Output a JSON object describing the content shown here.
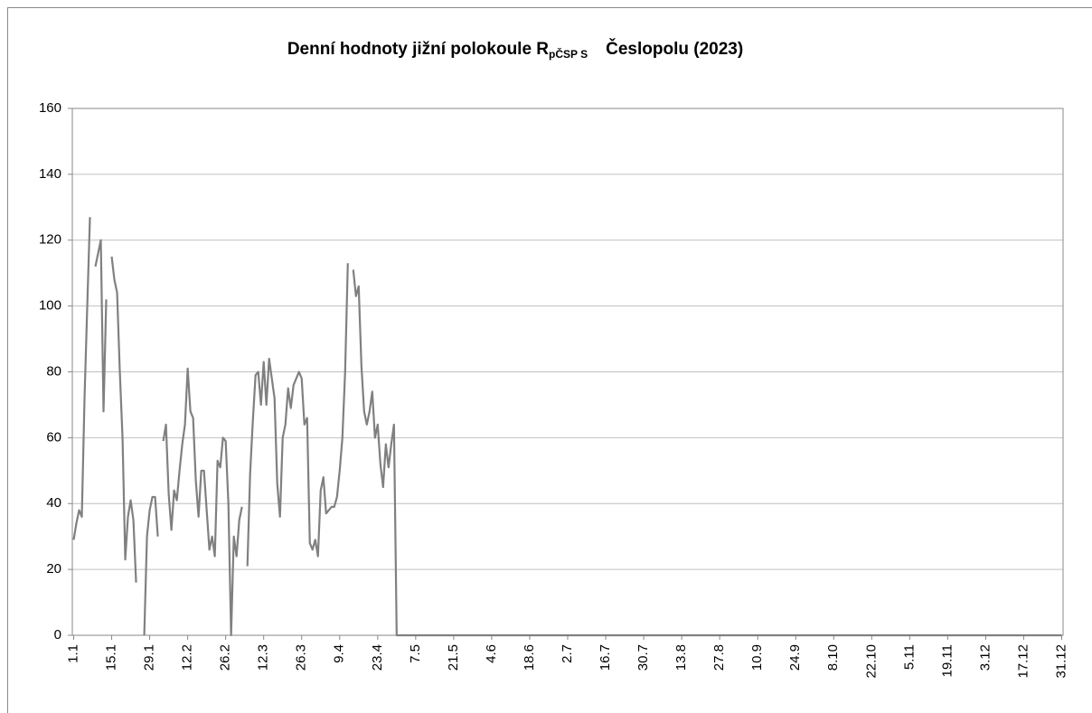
{
  "chart_data": {
    "type": "line",
    "title": "Denní hodnoty jižní polokoule R",
    "title_subscript": "pČSP S",
    "title_end": "Česlopolu (2023)",
    "color": "#808080",
    "ylim": [
      0,
      160
    ],
    "yticks": [
      0,
      20,
      40,
      60,
      80,
      100,
      120,
      140,
      160
    ],
    "grid": true,
    "categories": [
      "1.1",
      null,
      null,
      null,
      null,
      null,
      null,
      null,
      null,
      null,
      null,
      null,
      null,
      null,
      "15.1",
      null,
      null,
      null,
      null,
      null,
      null,
      null,
      null,
      null,
      null,
      null,
      null,
      null,
      "29.1",
      null,
      null,
      null,
      null,
      null,
      null,
      null,
      null,
      null,
      null,
      null,
      null,
      null,
      "12.2",
      null,
      null,
      null,
      null,
      null,
      null,
      null,
      null,
      null,
      null,
      null,
      null,
      null,
      "26.2",
      null,
      null,
      null,
      null,
      null,
      null,
      null,
      null,
      null,
      null,
      null,
      null,
      null,
      "12.3",
      null,
      null,
      null,
      null,
      null,
      null,
      null,
      null,
      null,
      null,
      null,
      null,
      null,
      "26.3",
      null,
      null,
      null,
      null,
      null,
      null,
      null,
      null,
      null,
      null,
      null,
      null,
      null,
      "9.4",
      null,
      null,
      null,
      null,
      null,
      null,
      null,
      null,
      null,
      null,
      null,
      null,
      null,
      "23.4",
      null,
      null,
      null,
      null,
      null,
      null,
      null,
      null,
      null,
      null,
      null,
      null,
      null,
      "7.5",
      null,
      null,
      null,
      null,
      null,
      null,
      null,
      null,
      null,
      null,
      null,
      null,
      null,
      "21.5",
      null,
      null,
      null,
      null,
      null,
      null,
      null,
      null,
      null,
      null,
      null,
      null,
      null,
      "4.6",
      null,
      null,
      null,
      null,
      null,
      null,
      null,
      null,
      null,
      null,
      null,
      null,
      null,
      "18.6",
      null,
      null,
      null,
      null,
      null,
      null,
      null,
      null,
      null,
      null,
      null,
      null,
      null,
      "2.7",
      null,
      null,
      null,
      null,
      null,
      null,
      null,
      null,
      null,
      null,
      null,
      null,
      null,
      "16.7",
      null,
      null,
      null,
      null,
      null,
      null,
      null,
      null,
      null,
      null,
      null,
      null,
      null,
      "30.7",
      null,
      null,
      null,
      null,
      null,
      null,
      null,
      null,
      null,
      null,
      null,
      null,
      null,
      "13.8",
      null,
      null,
      null,
      null,
      null,
      null,
      null,
      null,
      null,
      null,
      null,
      null,
      null,
      "27.8",
      null,
      null,
      null,
      null,
      null,
      null,
      null,
      null,
      null,
      null,
      null,
      null,
      null,
      "10.9",
      null,
      null,
      null,
      null,
      null,
      null,
      null,
      null,
      null,
      null,
      null,
      null,
      null,
      "24.9",
      null,
      null,
      null,
      null,
      null,
      null,
      null,
      null,
      null,
      null,
      null,
      null,
      null,
      "8.10",
      null,
      null,
      null,
      null,
      null,
      null,
      null,
      null,
      null,
      null,
      null,
      null,
      null,
      "22.10",
      null,
      null,
      null,
      null,
      null,
      null,
      null,
      null,
      null,
      null,
      null,
      null,
      null,
      "5.11",
      null,
      null,
      null,
      null,
      null,
      null,
      null,
      null,
      null,
      null,
      null,
      null,
      null,
      "19.11",
      null,
      null,
      null,
      null,
      null,
      null,
      null,
      null,
      null,
      null,
      null,
      null,
      null,
      "3.12",
      null,
      null,
      null,
      null,
      null,
      null,
      null,
      null,
      null,
      null,
      null,
      null,
      null,
      "17.12",
      null,
      null,
      null,
      null,
      null,
      null,
      null,
      null,
      null,
      null,
      null,
      null,
      null,
      "31.12"
    ],
    "values": [
      29,
      34,
      38,
      36,
      72,
      100,
      127,
      null,
      112,
      116,
      120,
      68,
      102,
      null,
      115,
      108,
      104,
      80,
      60,
      23,
      36,
      41,
      35,
      16,
      null,
      null,
      0,
      30,
      38,
      42,
      42,
      30,
      null,
      59,
      64,
      43,
      32,
      44,
      41,
      50,
      58,
      64,
      81,
      68,
      66,
      47,
      36,
      50,
      50,
      38,
      26,
      30,
      24,
      53,
      51,
      60,
      59,
      40,
      0,
      30,
      24,
      35,
      39,
      null,
      21,
      49,
      65,
      79,
      80,
      70,
      83,
      70,
      84,
      78,
      72,
      46,
      36,
      60,
      64,
      75,
      69,
      76,
      78,
      80,
      78,
      64,
      66,
      28,
      26,
      29,
      24,
      44,
      48,
      37,
      38,
      39,
      39,
      42,
      50,
      60,
      80,
      113,
      null,
      111,
      103,
      106,
      82,
      68,
      64,
      68,
      74,
      60,
      64,
      52,
      45,
      58,
      51,
      58,
      64,
      0,
      0,
      0,
      0,
      0,
      0,
      0,
      0,
      0,
      0,
      0,
      0,
      0,
      0,
      0,
      0,
      0,
      0,
      0,
      0,
      0,
      0,
      0,
      0,
      0,
      0,
      0,
      0,
      0,
      0,
      0,
      0,
      0,
      0,
      0,
      0,
      0,
      0,
      0,
      0,
      0,
      0,
      0,
      0,
      0,
      0,
      0,
      0,
      0,
      0,
      0,
      0,
      0,
      0,
      0,
      0,
      0,
      0,
      0,
      0,
      0,
      0,
      0,
      0,
      0,
      0,
      0,
      0,
      0,
      0,
      0,
      0,
      0,
      0,
      0,
      0,
      0,
      0,
      0,
      0,
      0,
      0,
      0,
      0,
      0,
      0,
      0,
      0,
      0,
      0,
      0,
      0,
      0,
      0,
      0,
      0,
      0,
      0,
      0,
      0,
      0,
      0,
      0,
      0,
      0,
      0,
      0,
      0,
      0,
      0,
      0,
      0,
      0,
      0,
      0,
      0,
      0,
      0,
      0,
      0,
      0,
      0,
      0,
      0,
      0,
      0,
      0,
      0,
      0,
      0,
      0,
      0,
      0,
      0,
      0,
      0,
      0,
      0,
      0,
      0,
      0,
      0,
      0,
      0,
      0,
      0,
      0,
      0,
      0,
      0,
      0,
      0,
      0,
      0,
      0,
      0,
      0,
      0,
      0,
      0,
      0,
      0,
      0,
      0,
      0,
      0,
      0,
      0,
      0,
      0,
      0,
      0,
      0,
      0,
      0,
      0,
      0,
      0,
      0,
      0,
      0,
      0,
      0,
      0,
      0,
      0,
      0,
      0,
      0,
      0,
      0,
      0,
      0,
      0,
      0,
      0,
      0,
      0,
      0,
      0,
      0,
      0,
      0,
      0,
      0,
      0,
      0,
      0,
      0,
      0,
      0,
      0,
      0,
      0,
      0,
      0,
      0,
      0,
      0,
      0,
      0,
      0,
      0,
      0,
      0,
      0,
      0,
      0,
      0,
      0,
      0,
      0,
      0,
      0,
      0,
      0,
      0,
      0,
      0,
      0,
      0,
      0,
      0,
      0,
      0,
      0
    ]
  }
}
